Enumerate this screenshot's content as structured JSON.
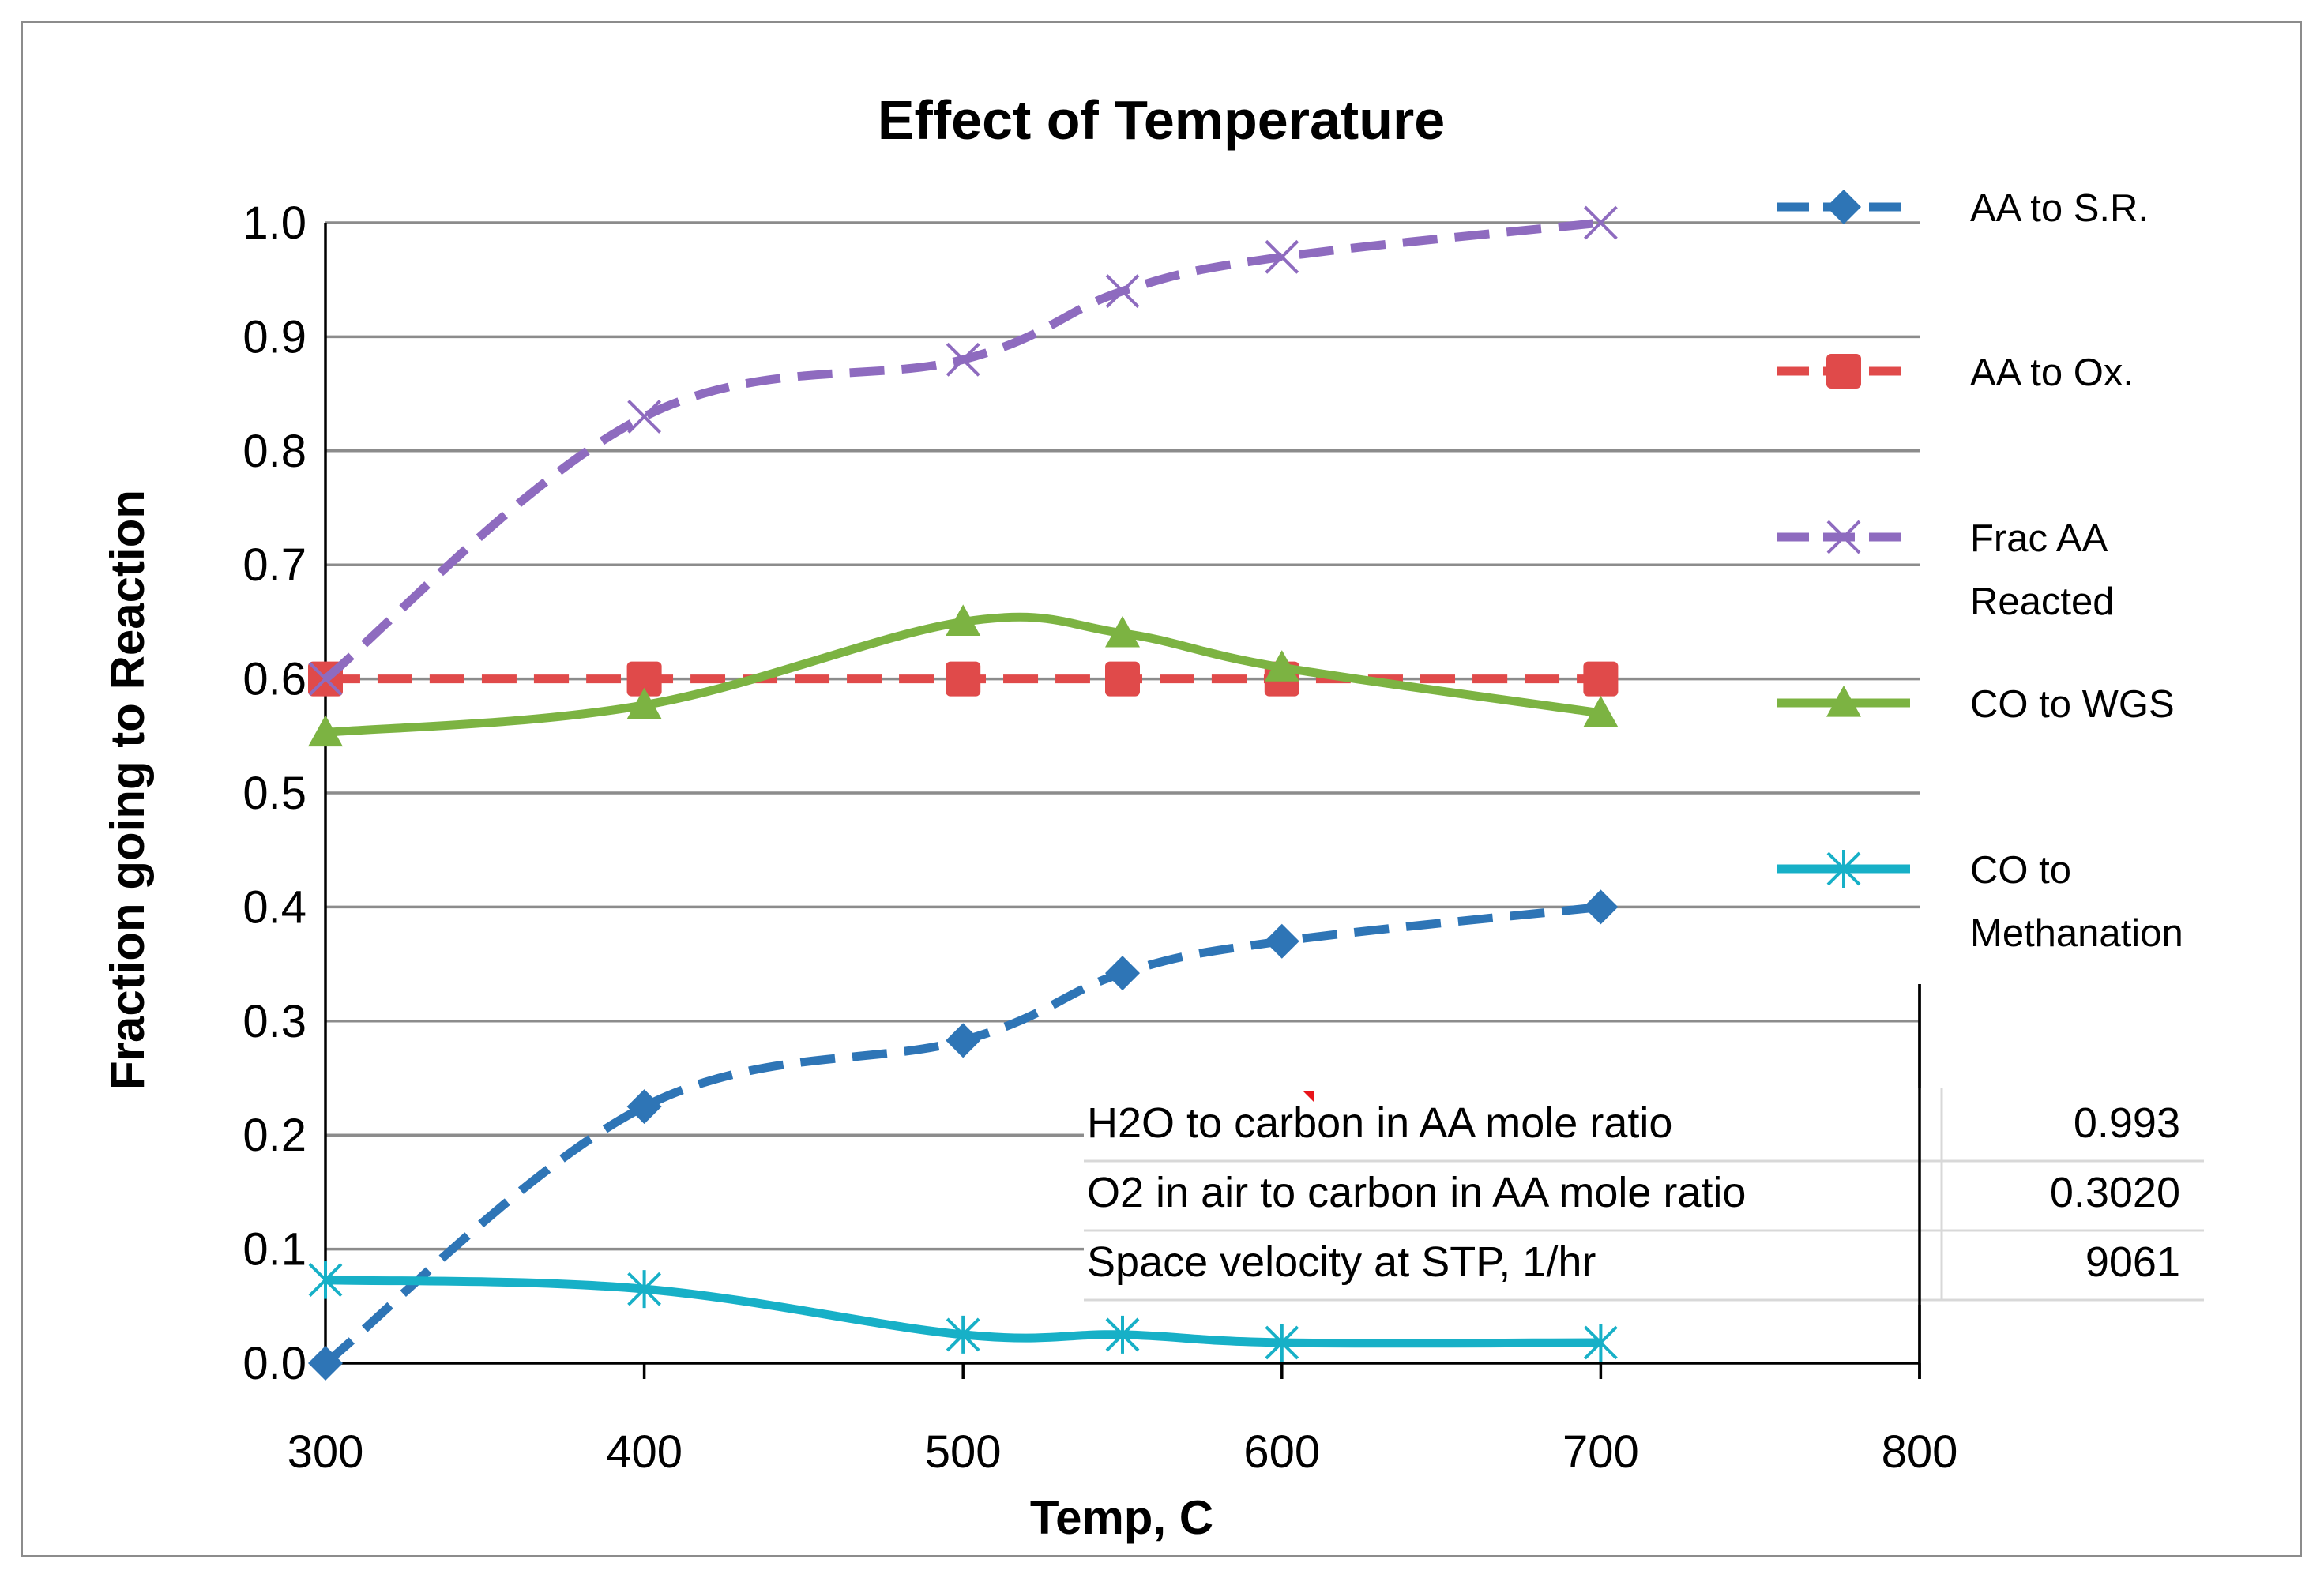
{
  "chart_data": {
    "type": "line",
    "title": "Effect of Temperature",
    "xlabel": "Temp, C",
    "ylabel": "Fraction going to Reaction",
    "xlim": [
      300,
      800
    ],
    "ylim": [
      0.0,
      1.0
    ],
    "x_ticks": [
      300,
      400,
      500,
      600,
      700,
      800
    ],
    "y_ticks": [
      "0.0",
      "0.1",
      "0.2",
      "0.3",
      "0.4",
      "0.5",
      "0.6",
      "0.7",
      "0.8",
      "0.9",
      "1.0"
    ],
    "grid": true,
    "legend_position": "right",
    "series": [
      {
        "name": "AA to S.R.",
        "legend_lines": [
          "AA to S.R."
        ],
        "color": "#2e75b6",
        "dash": "dashed",
        "marker": "diamond",
        "x": [
          300,
          400,
          500,
          550,
          600,
          700
        ],
        "y": [
          0.0,
          0.225,
          0.283,
          0.342,
          0.37,
          0.4
        ]
      },
      {
        "name": "AA to Ox.",
        "legend_lines": [
          "AA to Ox."
        ],
        "color": "#e04a4a",
        "dash": "dashed",
        "marker": "square",
        "x": [
          300,
          400,
          500,
          550,
          600,
          700
        ],
        "y": [
          0.6,
          0.6,
          0.6,
          0.6,
          0.6,
          0.6
        ]
      },
      {
        "name": "Frac AA Reacted",
        "legend_lines": [
          "Frac AA",
          "Reacted"
        ],
        "color": "#8e6bbf",
        "dash": "dashed",
        "marker": "x",
        "x": [
          300,
          400,
          500,
          550,
          600,
          700
        ],
        "y": [
          0.6,
          0.83,
          0.88,
          0.94,
          0.97,
          1.0
        ]
      },
      {
        "name": "CO to WGS",
        "legend_lines": [
          "CO to WGS"
        ],
        "color": "#7cb342",
        "dash": "solid",
        "marker": "triangle",
        "x": [
          300,
          400,
          500,
          550,
          600,
          700
        ],
        "y": [
          0.553,
          0.577,
          0.65,
          0.64,
          0.61,
          0.57
        ]
      },
      {
        "name": "CO to Methanation",
        "legend_lines": [
          "CO to",
          "Methanation"
        ],
        "color": "#17b0c7",
        "dash": "solid",
        "marker": "star",
        "x": [
          300,
          400,
          500,
          550,
          600,
          700
        ],
        "y": [
          0.073,
          0.065,
          0.025,
          0.025,
          0.018,
          0.018
        ]
      }
    ],
    "annotation_table": [
      {
        "label": "H2O to carbon in AA mole ratio",
        "value": "0.993"
      },
      {
        "label": "O2 in air to carbon in AA mole ratio",
        "value": "0.3020"
      },
      {
        "label": "Space velocity at STP, 1/hr",
        "value": "9061"
      }
    ]
  }
}
